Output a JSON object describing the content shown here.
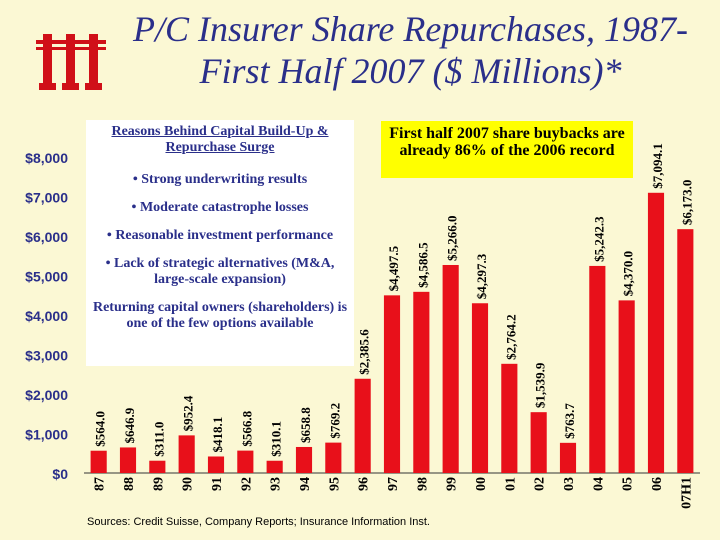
{
  "title": "P/C Insurer Share Repurchases, 1987- First Half 2007 ($ Millions)*",
  "logo": {
    "icon": "iii-logo-icon",
    "color": "#d01018"
  },
  "chart_data": {
    "type": "bar",
    "categories": [
      "87",
      "88",
      "89",
      "90",
      "91",
      "92",
      "93",
      "94",
      "95",
      "96",
      "97",
      "98",
      "99",
      "00",
      "01",
      "02",
      "03",
      "04",
      "05",
      "06",
      "07H1"
    ],
    "values": [
      564.0,
      646.9,
      311.0,
      952.4,
      418.1,
      566.8,
      310.1,
      658.8,
      769.2,
      2385.6,
      4497.5,
      4586.5,
      5266.0,
      4297.3,
      2764.2,
      1539.9,
      763.7,
      5242.3,
      4370.0,
      7094.1,
      6173.0
    ],
    "data_labels": [
      "$564.0",
      "$646.9",
      "$311.0",
      "$952.4",
      "$418.1",
      "$566.8",
      "$310.1",
      "$658.8",
      "$769.2",
      "$2,385.6",
      "$4,497.5",
      "$4,586.5",
      "$5,266.0",
      "$4,297.3",
      "$2,764.2",
      "$1,539.9",
      "$763.7",
      "$5,242.3",
      "$4,370.0",
      "$7,094.1",
      "$6,173.0"
    ],
    "y_ticks": [
      0,
      1000,
      2000,
      3000,
      4000,
      5000,
      6000,
      7000,
      8000
    ],
    "y_tick_labels": [
      "$0",
      "$1,000",
      "$2,000",
      "$3,000",
      "$4,000",
      "$5,000",
      "$6,000",
      "$7,000",
      "$8,000"
    ],
    "ylim": [
      0,
      8000
    ],
    "bar_color": "#e8101a",
    "grid": false
  },
  "reasons": {
    "heading": "Reasons Behind Capital Build-Up & Repurchase Surge",
    "items": [
      "• Strong underwriting results",
      "• Moderate catastrophe losses",
      "• Reasonable investment performance",
      "• Lack of strategic alternatives (M&A, large-scale expansion)"
    ],
    "closing": "Returning capital owners (shareholders) is one of the few options available"
  },
  "callout": "First half 2007 share buybacks are already 86% of the 2006 record",
  "source": "Sources: Credit Suisse, Company Reports; Insurance Information Inst."
}
